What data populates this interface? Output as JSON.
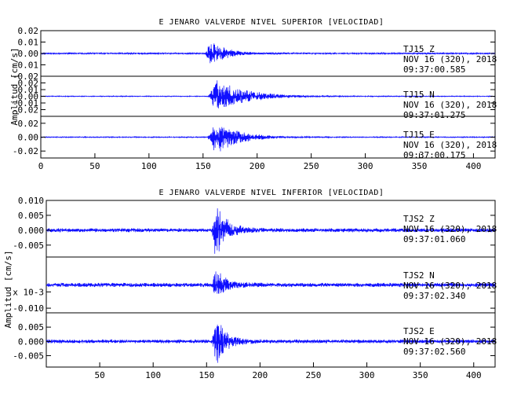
{
  "colors": {
    "trace": "#1010ff",
    "axes": "#000000",
    "background": "#ffffff"
  },
  "chart_data": [
    {
      "type": "line",
      "title": "E JENARO VALVERDE NIVEL SUPERIOR [VELOCIDAD]",
      "ylabel": "Amplitud [cm/s]",
      "xlabel": "",
      "xlim": [
        0,
        420
      ],
      "x_ticks": [
        "0",
        "50",
        "100",
        "150",
        "200",
        "250",
        "300",
        "350",
        "400"
      ],
      "x_tick_values": [
        0,
        50,
        100,
        150,
        200,
        250,
        300,
        350,
        400
      ],
      "grid": false,
      "panels": [
        {
          "channel": "TJ15   Z",
          "date": "NOV 16 (320), 2018",
          "time": "09:37:00.585",
          "ylim": [
            -0.02,
            0.02
          ],
          "y_tick_labels": [
            "0.02",
            "0.01",
            "0.00",
            "-0.01",
            "-0.02"
          ],
          "y_tick_values": [
            0.02,
            0.01,
            0.0,
            -0.01,
            -0.02
          ],
          "onset": 152,
          "peak_time": 158,
          "decay": 12,
          "peak_amp": 0.011,
          "noise": 0.0006,
          "seed": 11
        },
        {
          "channel": "TJ15   N",
          "date": "NOV 16 (320), 2018",
          "time": "09:37:01.275",
          "ylim": [
            -0.03,
            0.03
          ],
          "y_tick_labels": [
            "0.02",
            "0.01",
            "0.00",
            "-0.01",
            "-0.02"
          ],
          "y_tick_values": [
            0.02,
            0.01,
            0.0,
            -0.01,
            -0.02
          ],
          "onset": 155,
          "peak_time": 163,
          "decay": 26,
          "peak_amp": 0.022,
          "noise": 0.0005,
          "seed": 23
        },
        {
          "channel": "TJ15   E",
          "date": "NOV 16 (320), 2018",
          "time": "09:37:00.175",
          "ylim": [
            -0.03,
            0.03
          ],
          "y_tick_labels": [
            "0.02",
            "0.00",
            "-0.02"
          ],
          "y_tick_values": [
            0.02,
            0.0,
            -0.02
          ],
          "onset": 154,
          "peak_time": 162,
          "decay": 20,
          "peak_amp": 0.022,
          "noise": 0.0006,
          "seed": 37
        }
      ]
    },
    {
      "type": "line",
      "title": "E JENARO VALVERDE NIVEL INFERIOR [VELOCIDAD]",
      "ylabel": "Amplitud [cm/s]",
      "xlabel": "",
      "xlim": [
        0,
        420
      ],
      "x_ticks": [
        "50",
        "100",
        "150",
        "200",
        "250",
        "300",
        "350",
        "400"
      ],
      "x_tick_values": [
        50,
        100,
        150,
        200,
        250,
        300,
        350,
        400
      ],
      "grid": false,
      "panels": [
        {
          "channel": "TJS2   Z",
          "date": "NOV 16 (320), 2018",
          "time": "09:37:01.060",
          "ylim": [
            -0.009,
            0.01
          ],
          "y_tick_labels": [
            "0.010",
            "0.005",
            "0.000",
            "-0.005"
          ],
          "y_tick_values": [
            0.01,
            0.005,
            0.0,
            -0.005
          ],
          "onset": 155,
          "peak_time": 158,
          "decay": 10,
          "peak_amp": 0.0085,
          "noise": 0.0006,
          "seed": 51
        },
        {
          "channel": "TJS2   N",
          "date": "NOV 16 (320), 2018",
          "time": "09:37:02.340",
          "ylim": [
            -0.012,
            0.012
          ],
          "y_tick_labels": [
            "x 10-3",
            "-0.010"
          ],
          "y_tick_values": [
            -0.003,
            -0.01
          ],
          "onset": 155,
          "peak_time": 159,
          "decay": 9,
          "peak_amp": 0.006,
          "noise": 0.0008,
          "seed": 67
        },
        {
          "channel": "TJS2   E",
          "date": "NOV 16 (320), 2018",
          "time": "09:37:02.560",
          "ylim": [
            -0.009,
            0.01
          ],
          "y_tick_labels": [
            "0.005",
            "0.000",
            "-0.005"
          ],
          "y_tick_values": [
            0.005,
            0.0,
            -0.005
          ],
          "onset": 155,
          "peak_time": 159,
          "decay": 9,
          "peak_amp": 0.0075,
          "noise": 0.0006,
          "seed": 83
        }
      ]
    }
  ]
}
